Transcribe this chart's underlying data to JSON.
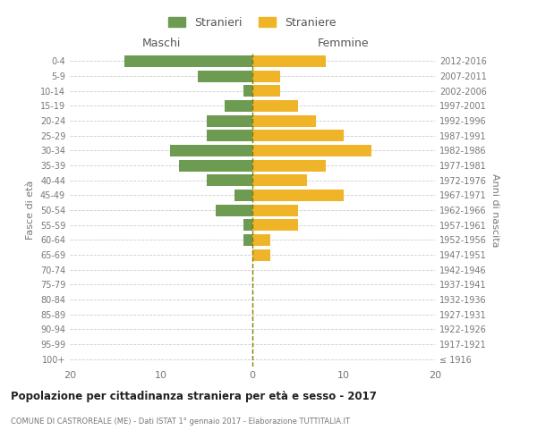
{
  "age_groups": [
    "100+",
    "95-99",
    "90-94",
    "85-89",
    "80-84",
    "75-79",
    "70-74",
    "65-69",
    "60-64",
    "55-59",
    "50-54",
    "45-49",
    "40-44",
    "35-39",
    "30-34",
    "25-29",
    "20-24",
    "15-19",
    "10-14",
    "5-9",
    "0-4"
  ],
  "birth_years": [
    "≤ 1916",
    "1917-1921",
    "1922-1926",
    "1927-1931",
    "1932-1936",
    "1937-1941",
    "1942-1946",
    "1947-1951",
    "1952-1956",
    "1957-1961",
    "1962-1966",
    "1967-1971",
    "1972-1976",
    "1977-1981",
    "1982-1986",
    "1987-1991",
    "1992-1996",
    "1997-2001",
    "2002-2006",
    "2007-2011",
    "2012-2016"
  ],
  "males": [
    0,
    0,
    0,
    0,
    0,
    0,
    0,
    0,
    1,
    1,
    4,
    2,
    5,
    8,
    9,
    5,
    5,
    3,
    1,
    6,
    14
  ],
  "females": [
    0,
    0,
    0,
    0,
    0,
    0,
    0,
    2,
    2,
    5,
    5,
    10,
    6,
    8,
    13,
    10,
    7,
    5,
    3,
    3,
    8
  ],
  "male_color": "#6e9b52",
  "female_color": "#f0b429",
  "background_color": "#ffffff",
  "grid_color": "#cccccc",
  "title": "Popolazione per cittadinanza straniera per età e sesso - 2017",
  "subtitle": "COMUNE DI CASTROREALE (ME) - Dati ISTAT 1° gennaio 2017 - Elaborazione TUTTITALIA.IT",
  "ylabel_left": "Fasce di età",
  "ylabel_right": "Anni di nascita",
  "xlabel_left": "Maschi",
  "xlabel_right": "Femmine",
  "legend_male": "Stranieri",
  "legend_female": "Straniere",
  "xlim": 20,
  "center_line_color": "#808000"
}
